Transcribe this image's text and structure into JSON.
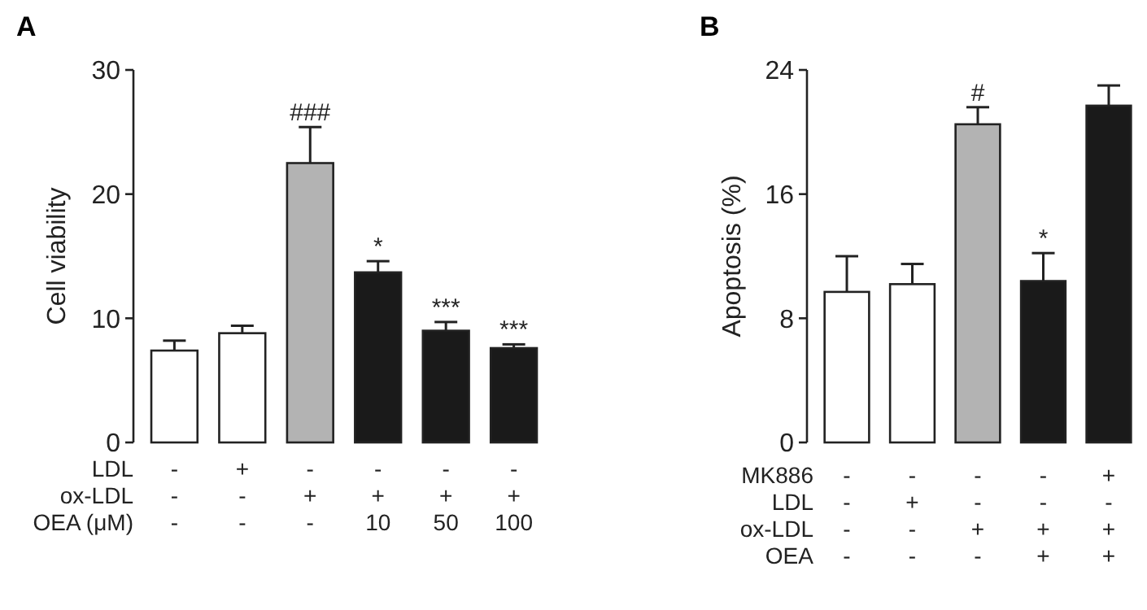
{
  "chart_data": [
    {
      "type": "bar",
      "title": "A",
      "ylabel": "Cell viability",
      "xlabel": "LDL\nox-LDL\nOEA (μM)",
      "categories": [
        "-\n-\n-",
        "+\n-\n-",
        "-\n+\n-",
        "-\n+\n10",
        "-\n+\n50",
        "-\n+\n100"
      ],
      "values": [
        7.4,
        8.8,
        22.5,
        13.7,
        9.0,
        7.6
      ],
      "errors": [
        0.8,
        0.6,
        2.9,
        0.9,
        0.7,
        0.3
      ],
      "colors": [
        "#ffffff",
        "#ffffff",
        "#b3b3b3",
        "#1a1a1a",
        "#1a1a1a",
        "#1a1a1a"
      ],
      "ylim": [
        0,
        30
      ],
      "yticks": [
        0,
        10,
        20,
        30
      ],
      "grid": false,
      "annotations": [
        {
          "text": "###",
          "x": "-\n+\n-",
          "y": 25.4
        },
        {
          "text": "*",
          "x": "-\n+\n10",
          "y": 14.6
        },
        {
          "text": "***",
          "x": "-\n+\n50",
          "y": 9.7
        },
        {
          "text": "***",
          "x": "-\n+\n100",
          "y": 7.9
        }
      ]
    },
    {
      "type": "bar",
      "title": "B",
      "ylabel": "Apoptosis (%)",
      "xlabel": "MK886\nLDL\nox-LDL\nOEA",
      "categories": [
        "-\n-\n-\n-",
        "-\n+\n-\n-",
        "-\n-\n+\n-",
        "-\n-\n+\n+",
        "+\n-\n+\n+"
      ],
      "values": [
        9.7,
        10.2,
        20.5,
        10.4,
        21.7
      ],
      "errors": [
        2.3,
        1.3,
        1.1,
        1.8,
        1.3
      ],
      "colors": [
        "#ffffff",
        "#ffffff",
        "#b3b3b3",
        "#1a1a1a",
        "#1a1a1a"
      ],
      "ylim": [
        0,
        24
      ],
      "yticks": [
        0,
        8,
        16,
        24
      ],
      "grid": false,
      "annotations": [
        {
          "text": "#",
          "x": "-\n-\n+\n-",
          "y": 21.6
        },
        {
          "text": "*",
          "x": "-\n-\n+\n+",
          "y": 12.2
        }
      ]
    }
  ]
}
